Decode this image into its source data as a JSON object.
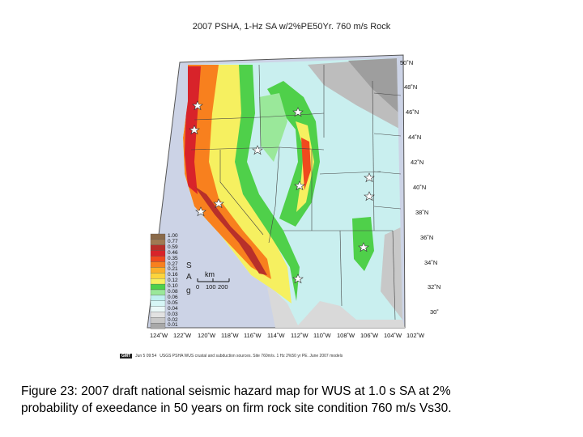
{
  "title": "2007 PSHA, 1-Hz SA w/2%PE50Yr. 760 m/s Rock",
  "latitude_labels": [
    "50˚N",
    "48˚N",
    "46˚N",
    "44˚N",
    "42˚N",
    "40˚N",
    "38˚N",
    "36˚N",
    "34˚N",
    "32˚N",
    "30˚"
  ],
  "longitude_labels": [
    "124˚W",
    "122˚W",
    "120˚W",
    "118˚W",
    "116˚W",
    "114˚W",
    "112˚W",
    "110˚W",
    "108˚W",
    "106˚W",
    "104˚W",
    "102˚W"
  ],
  "legend": {
    "units": [
      "S",
      "A",
      "g"
    ],
    "levels": [
      {
        "label": "1.00",
        "color": "#8a6a4a"
      },
      {
        "label": "0.77",
        "color": "#a07a52"
      },
      {
        "label": "0.59",
        "color": "#b8302a"
      },
      {
        "label": "0.46",
        "color": "#d8232a"
      },
      {
        "label": "0.35",
        "color": "#f04a1e"
      },
      {
        "label": "0.27",
        "color": "#f8801e"
      },
      {
        "label": "0.21",
        "color": "#fbb02a"
      },
      {
        "label": "0.16",
        "color": "#fcd43c"
      },
      {
        "label": "0.12",
        "color": "#f6f060"
      },
      {
        "label": "0.10",
        "color": "#4fd04a"
      },
      {
        "label": "0.08",
        "color": "#9ae89a"
      },
      {
        "label": "0.06",
        "color": "#bff0f0"
      },
      {
        "label": "0.05",
        "color": "#d6f6f6"
      },
      {
        "label": "0.04",
        "color": "#eaf8f8"
      },
      {
        "label": "0.03",
        "color": "#e2e2e2"
      },
      {
        "label": "0.02",
        "color": "#c8c8c8"
      },
      {
        "label": "0.01",
        "color": "#a8a8a8"
      }
    ]
  },
  "scale_bar": {
    "unit": "km",
    "ticks": [
      "0",
      "100",
      "200"
    ]
  },
  "gmt_stamp": {
    "logo": "GMT",
    "date": "Jun 5 09:54",
    "source": "USGS PSHA WUS crustal and subduction sources. Site 760m/s. 1 Hz 2%50 yr PE. June 2007 models"
  },
  "caption": {
    "line1": "Figure 23: 2007 draft national seismic hazard map for WUS at 1.0 s SA at 2%",
    "line2": "probability of exeedance in 50 years on firm rock site condition 760 m/s Vs30."
  }
}
